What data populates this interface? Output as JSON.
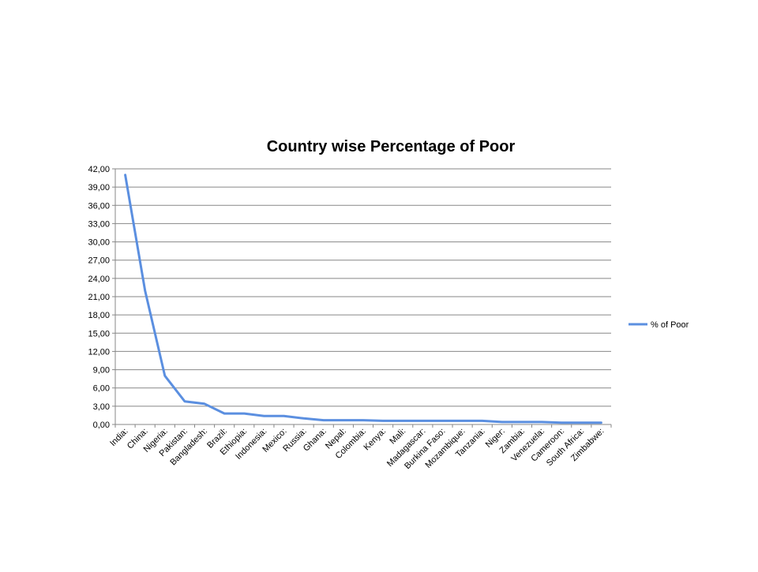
{
  "chart_data": {
    "type": "line",
    "title": "Country wise Percentage of Poor",
    "xlabel": "",
    "ylabel": "",
    "categories": [
      "India:",
      "China:",
      "Nigeria:",
      "Pakistan:",
      "Bangladesh:",
      "Brazil:",
      "Ethiopia:",
      "Indonesia:",
      "Mexico:",
      "Russia:",
      "Ghana:",
      "Nepal:",
      "Colombia:",
      "Kenya:",
      "Mali:",
      "Madagascar:",
      "Burkina Faso:",
      "Mozambique:",
      "Tanzania:",
      "Niger:",
      "Zambia:",
      "Venezuela:",
      "Cameroon:",
      "South Africa:",
      "Zimbabwe:"
    ],
    "series": [
      {
        "name": "% of Poor",
        "color": "#5b8fe0",
        "values": [
          41.0,
          22.0,
          8.0,
          3.8,
          3.4,
          1.8,
          1.8,
          1.4,
          1.4,
          1.0,
          0.7,
          0.7,
          0.7,
          0.6,
          0.6,
          0.6,
          0.6,
          0.6,
          0.6,
          0.4,
          0.4,
          0.4,
          0.3,
          0.3,
          0.3
        ]
      }
    ],
    "ylim": [
      0,
      42
    ],
    "yticks": [
      "0,00",
      "3,00",
      "6,00",
      "9,00",
      "12,00",
      "15,00",
      "18,00",
      "21,00",
      "24,00",
      "27,00",
      "30,00",
      "33,00",
      "36,00",
      "39,00",
      "42,00"
    ],
    "grid": true,
    "legend_position": "right"
  }
}
